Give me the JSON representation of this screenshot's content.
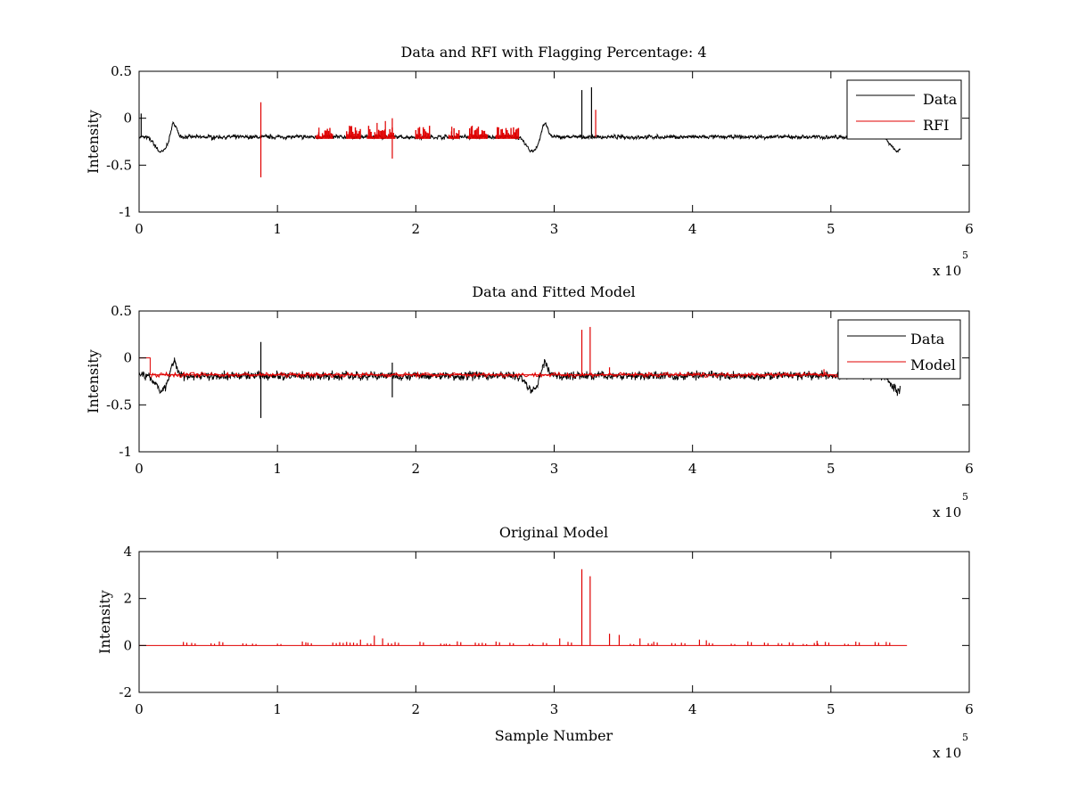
{
  "chart_data": [
    {
      "type": "line",
      "title": "Data and RFI with Flagging Percentage: 4",
      "xlabel": "",
      "ylabel": "Intensity",
      "xlim": [
        0,
        600000
      ],
      "ylim": [
        -1,
        0.5
      ],
      "xticks": [
        0,
        1,
        2,
        3,
        4,
        5,
        6
      ],
      "yticks": [
        "-1",
        "-0.5",
        "0",
        "0.5"
      ],
      "x_multiplier": "x 10",
      "x_multiplier_exp": "5",
      "grid": false,
      "legend_placement": "top-right",
      "series": [
        {
          "name": "Data",
          "color": "#000000",
          "baseline": -0.2,
          "noise": 0.015,
          "dips": [
            {
              "x": 16000,
              "y": -0.36
            },
            {
              "x": 284000,
              "y": -0.35
            },
            {
              "x": 548000,
              "y": -0.35
            }
          ],
          "spikes": [
            {
              "x": 320000,
              "y": 0.3
            },
            {
              "x": 327000,
              "y": 0.33
            },
            {
              "x": 1500,
              "y": 0.05
            }
          ]
        },
        {
          "name": "RFI",
          "color": "#e00000",
          "spikes": [
            {
              "x": 88000,
              "y": 0.17
            },
            {
              "x": 88000,
              "y": -0.63
            },
            {
              "x": 183000,
              "y": 0.0
            },
            {
              "x": 183000,
              "y": -0.43
            },
            {
              "x": 130000,
              "y": -0.1
            },
            {
              "x": 152000,
              "y": -0.08
            },
            {
              "x": 172000,
              "y": -0.05
            },
            {
              "x": 178000,
              "y": -0.03
            },
            {
              "x": 226000,
              "y": -0.09
            },
            {
              "x": 240000,
              "y": -0.09
            },
            {
              "x": 330000,
              "y": 0.09
            }
          ],
          "clusters": [
            [
              128000,
              140000
            ],
            [
              150000,
              160000
            ],
            [
              165000,
              185000
            ],
            [
              200000,
              210000
            ],
            [
              224000,
              232000
            ],
            [
              238000,
              252000
            ],
            [
              258000,
              275000
            ]
          ]
        }
      ]
    },
    {
      "type": "line",
      "title": "Data and Fitted Model",
      "xlabel": "",
      "ylabel": "Intensity",
      "xlim": [
        0,
        600000
      ],
      "ylim": [
        -1,
        0.5
      ],
      "xticks": [
        0,
        1,
        2,
        3,
        4,
        5,
        6
      ],
      "yticks": [
        "-1",
        "-0.5",
        "0",
        "0.5"
      ],
      "x_multiplier": "x 10",
      "x_multiplier_exp": "5",
      "grid": false,
      "legend_placement": "top-right",
      "series": [
        {
          "name": "Data",
          "color": "#000000",
          "baseline": -0.19,
          "noise": 0.03,
          "dips": [
            {
              "x": 16000,
              "y": -0.35
            },
            {
              "x": 284000,
              "y": -0.35
            },
            {
              "x": 548000,
              "y": -0.35
            }
          ],
          "spikes": [
            {
              "x": 88000,
              "y": 0.17
            },
            {
              "x": 88000,
              "y": -0.64
            },
            {
              "x": 183000,
              "y": -0.05
            },
            {
              "x": 183000,
              "y": -0.42
            }
          ]
        },
        {
          "name": "Model",
          "color": "#e00000",
          "baseline": -0.18,
          "step": {
            "x0": 0,
            "x1": 8000,
            "y": 0.0
          },
          "spikes": [
            {
              "x": 320000,
              "y": 0.3
            },
            {
              "x": 326000,
              "y": 0.33
            },
            {
              "x": 340000,
              "y": -0.1
            },
            {
              "x": 495000,
              "y": -0.12
            }
          ]
        }
      ]
    },
    {
      "type": "line",
      "title": "Original Model",
      "xlabel": "Sample Number",
      "ylabel": "Intensity",
      "xlim": [
        0,
        600000
      ],
      "ylim": [
        -2,
        4
      ],
      "xticks": [
        0,
        1,
        2,
        3,
        4,
        5,
        6
      ],
      "yticks": [
        "-2",
        "0",
        "2",
        "4"
      ],
      "x_multiplier": "x 10",
      "x_multiplier_exp": "5",
      "grid": false,
      "series": [
        {
          "color": "#e00000",
          "baseline": 0,
          "x_end": 555000,
          "spikes": [
            {
              "x": 320000,
              "y": 3.25
            },
            {
              "x": 326000,
              "y": 2.95
            },
            {
              "x": 340000,
              "y": 0.5
            },
            {
              "x": 347000,
              "y": 0.45
            },
            {
              "x": 170000,
              "y": 0.42
            },
            {
              "x": 160000,
              "y": 0.25
            },
            {
              "x": 176000,
              "y": 0.3
            },
            {
              "x": 304000,
              "y": 0.3
            },
            {
              "x": 362000,
              "y": 0.3
            },
            {
              "x": 405000,
              "y": 0.25
            },
            {
              "x": 410000,
              "y": 0.22
            },
            {
              "x": 490000,
              "y": 0.2
            }
          ],
          "bumps": [
            32000,
            38000,
            52000,
            58000,
            75000,
            82000,
            100000,
            118000,
            122000,
            140000,
            145000,
            150000,
            155000,
            165000,
            180000,
            185000,
            203000,
            218000,
            222000,
            230000,
            243000,
            248000,
            258000,
            268000,
            282000,
            292000,
            310000,
            355000,
            368000,
            372000,
            385000,
            392000,
            412000,
            428000,
            440000,
            452000,
            462000,
            470000,
            480000,
            488000,
            496000,
            510000,
            518000,
            532000,
            540000
          ]
        }
      ]
    }
  ]
}
